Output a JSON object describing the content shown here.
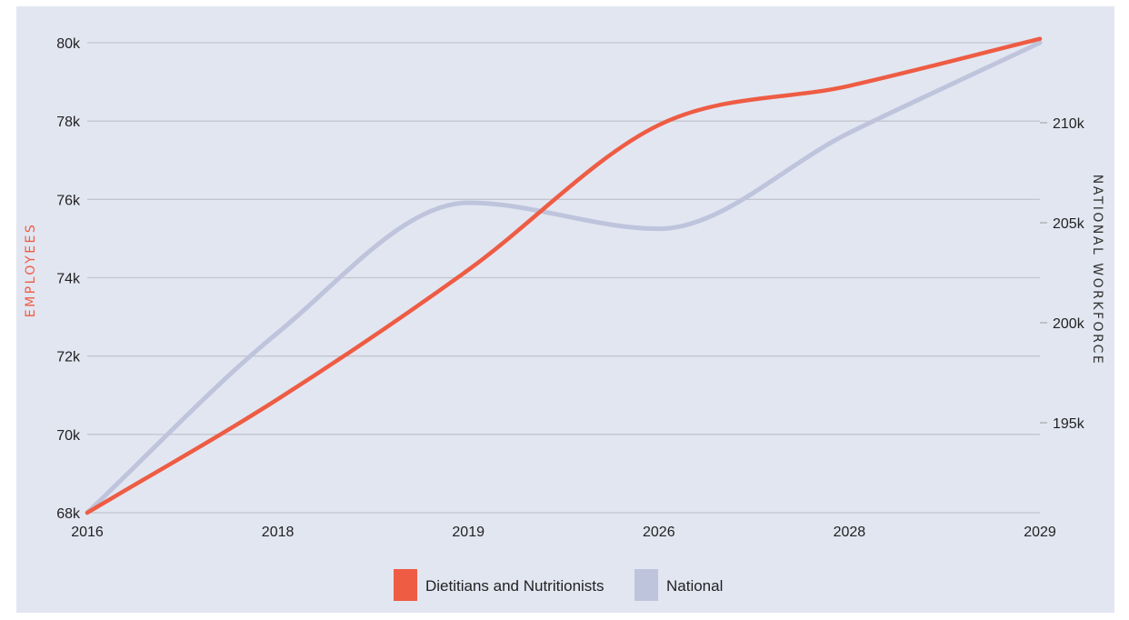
{
  "chart_data": {
    "type": "line",
    "categories": [
      "2016",
      "2018",
      "2019",
      "2026",
      "2028",
      "2029"
    ],
    "series": [
      {
        "name": "Dietitians and Nutritionists",
        "axis": "left",
        "color": "#ee5c44",
        "values": [
          68000,
          70900,
          74200,
          77900,
          78900,
          80100
        ]
      },
      {
        "name": "National",
        "axis": "right",
        "color": "#bec4dc",
        "values": [
          190500,
          199500,
          206000,
          204700,
          209500,
          214000
        ]
      }
    ],
    "ylabel": "EMPLOYEES",
    "ylabel_right": "NATIONAL WORKFORCE",
    "ylim": [
      68000,
      80000
    ],
    "ylim_right": [
      190500,
      214000
    ],
    "y_ticks": [
      68000,
      70000,
      72000,
      74000,
      76000,
      78000,
      80000
    ],
    "y_tick_labels": [
      "68k",
      "70k",
      "72k",
      "74k",
      "76k",
      "78k",
      "80k"
    ],
    "y2_ticks": [
      195000,
      200000,
      205000,
      210000
    ],
    "y2_tick_labels": [
      "195k",
      "200k",
      "205k",
      "210k"
    ],
    "grid": true,
    "legend_position": "bottom-center",
    "colors": {
      "background": "#e2e6f1",
      "grid": "#c3c6cf",
      "ylabel": "#ee5c44",
      "ylabel_right": "#333333"
    }
  }
}
